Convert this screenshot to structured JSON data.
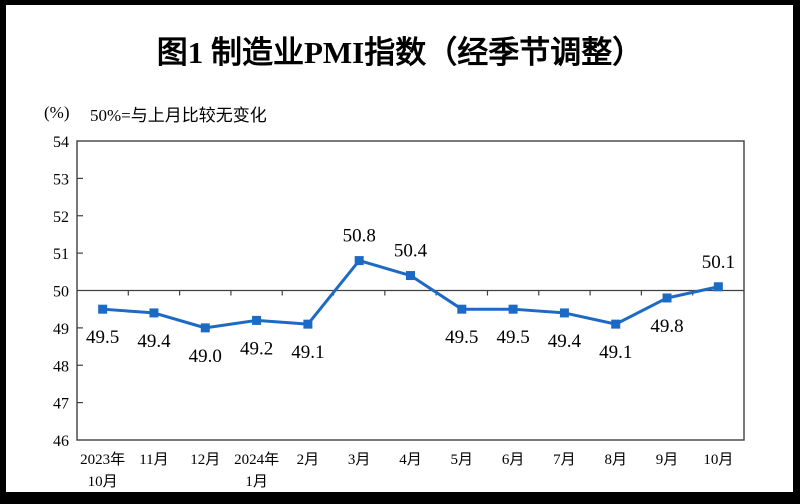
{
  "title": "图1 制造业PMI指数（经季节调整）",
  "subtitle": {
    "unit": "(%)",
    "note": "50%=与上月比较无变化"
  },
  "chart_data": {
    "type": "line",
    "title": "图1 制造业PMI指数（经季节调整）",
    "unit_label": "(%)",
    "annotation": "50%=与上月比较无变化",
    "categories": [
      [
        "2023年",
        "10月"
      ],
      [
        "11月"
      ],
      [
        "12月"
      ],
      [
        "2024年",
        "1月"
      ],
      [
        "2月"
      ],
      [
        "3月"
      ],
      [
        "4月"
      ],
      [
        "5月"
      ],
      [
        "6月"
      ],
      [
        "7月"
      ],
      [
        "8月"
      ],
      [
        "9月"
      ],
      [
        "10月"
      ]
    ],
    "series": [
      {
        "name": "制造业PMI",
        "values": [
          49.5,
          49.4,
          49.0,
          49.2,
          49.1,
          50.8,
          50.4,
          49.5,
          49.5,
          49.4,
          49.1,
          49.8,
          50.1
        ],
        "labels": [
          "49.5",
          "49.4",
          "49.0",
          "49.2",
          "49.1",
          "50.8",
          "50.4",
          "49.5",
          "49.5",
          "49.4",
          "49.1",
          "49.8",
          "50.1"
        ],
        "label_positions": [
          "below",
          "below",
          "below",
          "below",
          "below",
          "above",
          "above",
          "below",
          "below",
          "below",
          "below",
          "below",
          "above"
        ]
      }
    ],
    "ylim": [
      46,
      54
    ],
    "yticks": [
      46,
      47,
      48,
      49,
      50,
      51,
      52,
      53,
      54
    ],
    "reference_line": 50,
    "grid": false,
    "legend_position": "none",
    "line_color": "#1d6ac5",
    "marker": "square",
    "axis_color": "#404040",
    "text_color": "#000000"
  },
  "frame_color": "#000000"
}
